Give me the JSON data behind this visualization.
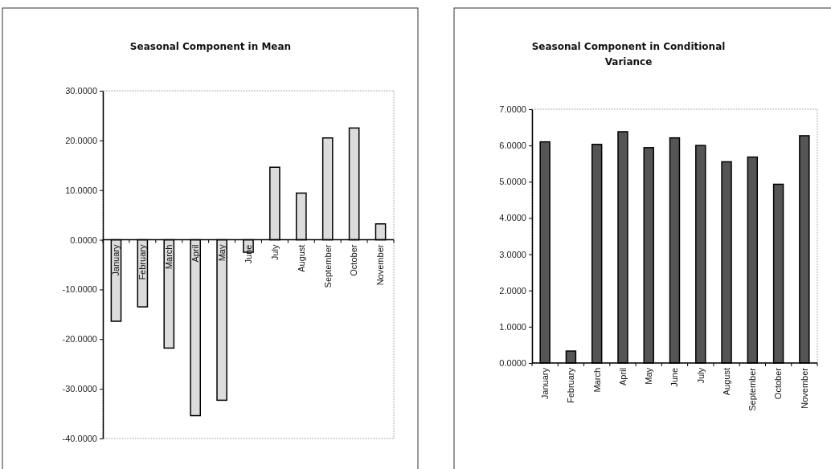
{
  "chart_data": [
    {
      "type": "bar",
      "title": "Seasonal Component in Mean",
      "categories": [
        "January",
        "February",
        "March",
        "April",
        "May",
        "June",
        "July",
        "August",
        "September",
        "October",
        "November"
      ],
      "values": [
        -16.4,
        -13.5,
        -21.8,
        -35.4,
        -32.3,
        -2.5,
        14.6,
        9.4,
        20.5,
        22.5,
        3.2
      ],
      "color": "#dcdcdc",
      "ylim": [
        -40,
        30
      ],
      "yticks": [
        {
          "value": -40,
          "label": "-40.0000"
        },
        {
          "value": -30,
          "label": "-30.0000"
        },
        {
          "value": -20,
          "label": "-20.0000"
        },
        {
          "value": -10,
          "label": "-10.0000"
        },
        {
          "value": 0,
          "label": "0.0000"
        },
        {
          "value": 10,
          "label": "10.0000"
        },
        {
          "value": 20,
          "label": "20.0000"
        },
        {
          "value": 30,
          "label": "30.0000"
        }
      ]
    },
    {
      "type": "bar",
      "title": "Seasonal Component in Conditional Variance",
      "categories": [
        "January",
        "February",
        "March",
        "April",
        "May",
        "June",
        "July",
        "August",
        "September",
        "October",
        "November"
      ],
      "values": [
        6.1,
        0.33,
        6.03,
        6.38,
        5.94,
        6.21,
        6.0,
        5.55,
        5.68,
        4.93,
        6.27
      ],
      "color": "#555555",
      "ylim": [
        0,
        7
      ],
      "yticks": [
        {
          "value": 0,
          "label": "0.0000"
        },
        {
          "value": 1,
          "label": "1.0000"
        },
        {
          "value": 2,
          "label": "2.0000"
        },
        {
          "value": 3,
          "label": "3.0000"
        },
        {
          "value": 4,
          "label": "4.0000"
        },
        {
          "value": 5,
          "label": "5.0000"
        },
        {
          "value": 6,
          "label": "6.0000"
        },
        {
          "value": 7,
          "label": "7.0000"
        }
      ]
    }
  ]
}
